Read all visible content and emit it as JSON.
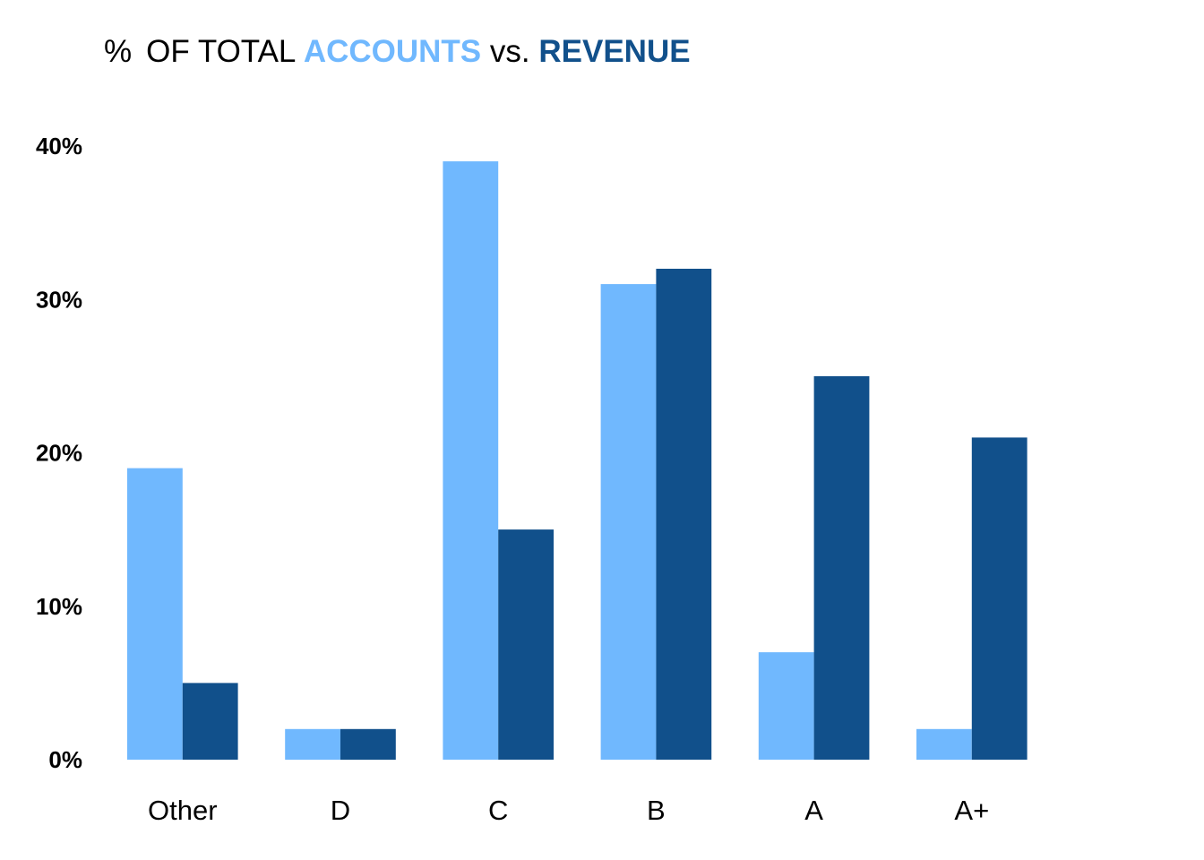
{
  "chart_data": {
    "type": "bar",
    "title_parts": {
      "prefix": "%",
      "middle": "OF TOTAL",
      "series_a": "ACCOUNTS",
      "joiner": "vs.",
      "series_b": "REVENUE"
    },
    "categories": [
      "Other",
      "D",
      "C",
      "B",
      "A",
      "A+"
    ],
    "series": [
      {
        "name": "ACCOUNTS",
        "color": "#70b8fe",
        "values": [
          19,
          2,
          39,
          31,
          7,
          2
        ]
      },
      {
        "name": "REVENUE",
        "color": "#11508b",
        "values": [
          5,
          2,
          15,
          32,
          25,
          21
        ]
      }
    ],
    "yticks": [
      0,
      10,
      20,
      30,
      40
    ],
    "ytick_suffix": "%",
    "ylim": [
      0,
      40
    ],
    "grid": false,
    "legend": "in-title"
  }
}
